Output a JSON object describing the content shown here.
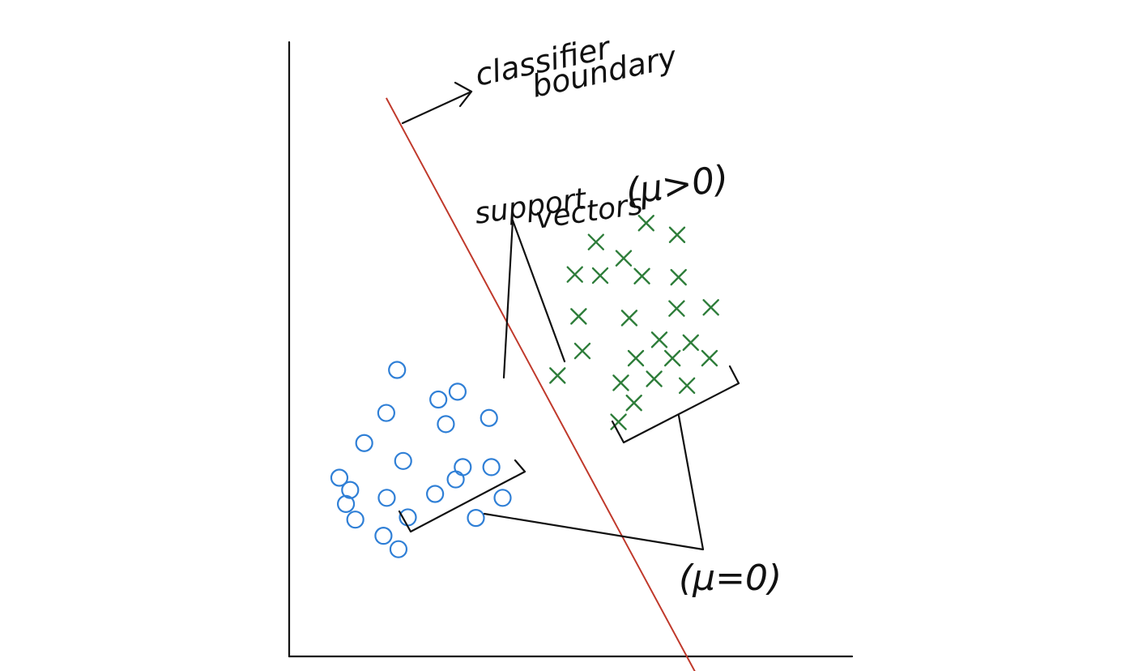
{
  "labels": {
    "classifier_line1": "classifier",
    "classifier_line2": "boundary",
    "support_line1": "support",
    "support_line2": "vectors",
    "support_mu": "(μ>0)",
    "nonsupport_mu": "(μ=0)"
  },
  "colors": {
    "axes": "#111111",
    "boundary": "#c0392b",
    "circle_class": "#2f7fd6",
    "cross_class": "#2e7d3a",
    "ink": "#111111"
  },
  "chart_data": {
    "type": "scatter",
    "series": [
      {
        "marker": "circle",
        "points": [
          [
            2.3,
            5.13
          ],
          [
            2.07,
            4.36
          ],
          [
            3.59,
            4.74
          ],
          [
            3.18,
            4.6
          ],
          [
            1.6,
            3.82
          ],
          [
            3.34,
            4.16
          ],
          [
            4.26,
            4.27
          ],
          [
            1.07,
            3.2
          ],
          [
            2.43,
            3.5
          ],
          [
            3.7,
            3.39
          ],
          [
            4.31,
            3.39
          ],
          [
            1.3,
            2.98
          ],
          [
            3.55,
            3.17
          ],
          [
            1.21,
            2.73
          ],
          [
            2.08,
            2.84
          ],
          [
            2.53,
            2.49
          ],
          [
            3.11,
            2.91
          ],
          [
            1.41,
            2.45
          ],
          [
            3.98,
            2.48
          ],
          [
            2.33,
            1.92
          ],
          [
            2.01,
            2.16
          ],
          [
            4.55,
            2.84
          ]
        ]
      },
      {
        "marker": "cross",
        "points": [
          [
            7.61,
            7.76
          ],
          [
            8.27,
            7.55
          ],
          [
            6.54,
            7.42
          ],
          [
            7.13,
            7.13
          ],
          [
            6.09,
            6.84
          ],
          [
            6.63,
            6.82
          ],
          [
            7.52,
            6.81
          ],
          [
            8.3,
            6.79
          ],
          [
            8.26,
            6.23
          ],
          [
            8.99,
            6.25
          ],
          [
            6.17,
            6.09
          ],
          [
            7.25,
            6.06
          ],
          [
            7.89,
            5.67
          ],
          [
            8.56,
            5.62
          ],
          [
            6.25,
            5.47
          ],
          [
            7.39,
            5.34
          ],
          [
            8.17,
            5.34
          ],
          [
            8.96,
            5.34
          ],
          [
            5.72,
            5.03
          ],
          [
            7.07,
            4.9
          ],
          [
            7.78,
            4.97
          ],
          [
            8.48,
            4.85
          ],
          [
            7.35,
            4.54
          ],
          [
            7.02,
            4.2
          ]
        ]
      }
    ],
    "boundary_line": [
      [
        2.07,
        10.0
      ],
      [
        8.79,
        -0.49
      ]
    ],
    "xlim": [
      0,
      12
    ],
    "ylim": [
      0,
      11
    ],
    "grid": false
  }
}
